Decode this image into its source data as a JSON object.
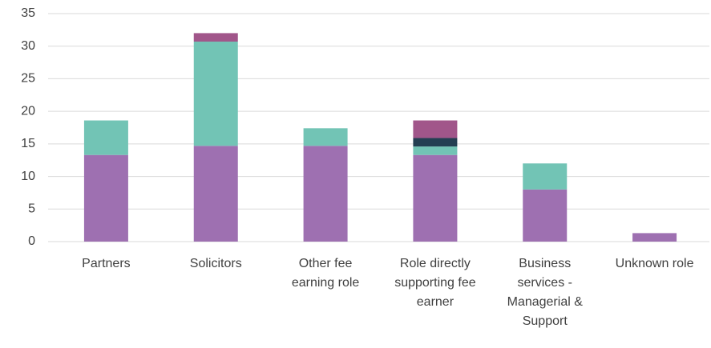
{
  "chart_data": {
    "type": "stacked_bar",
    "categories": [
      "Partners",
      "Solicitors",
      "Other fee earning role",
      "Role directly supporting fee earner",
      "Business services - Managerial & Support",
      "Unknown role"
    ],
    "series": [
      {
        "color": "#9e70b1",
        "values": [
          13.3,
          14.7,
          14.7,
          13.3,
          8,
          1.3
        ]
      },
      {
        "color": "#72c4b5",
        "values": [
          5.3,
          16,
          2.7,
          1.3,
          4,
          0
        ]
      },
      {
        "color": "#243f52",
        "values": [
          0,
          0,
          0,
          1.3,
          0,
          0
        ]
      },
      {
        "color": "#a1568a",
        "values": [
          0,
          1.3,
          0,
          2.7,
          0,
          0
        ]
      }
    ],
    "ylim": [
      0,
      35
    ],
    "yticks": [
      0,
      5,
      10,
      15,
      20,
      25,
      30,
      35
    ],
    "grid": true
  }
}
